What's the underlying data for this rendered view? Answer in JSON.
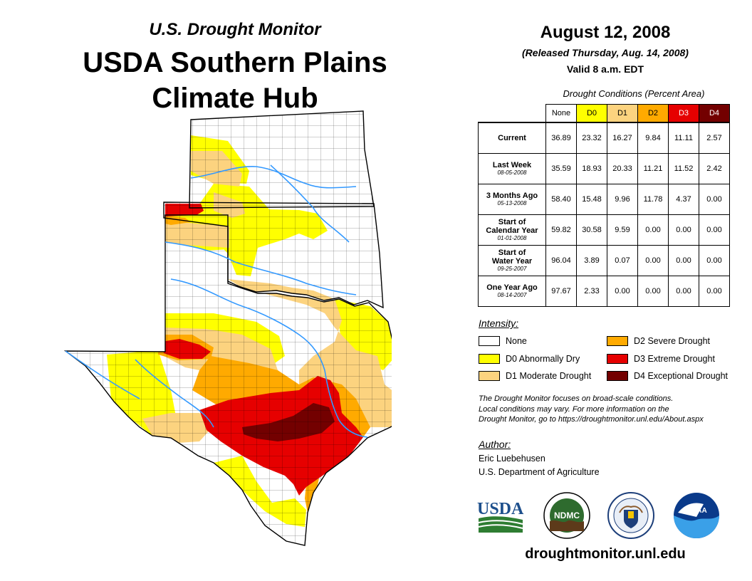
{
  "header": {
    "subtitle": "U.S. Drought Monitor",
    "title_line1": "USDA Southern Plains",
    "title_line2": "Climate Hub"
  },
  "report": {
    "date": "August 12, 2008",
    "released": "(Released Thursday, Aug. 14, 2008)",
    "valid": "Valid 8 a.m. EDT"
  },
  "conditions": {
    "caption": "Drought Conditions (Percent Area)",
    "columns": [
      {
        "label": "None",
        "color": "#ffffff",
        "text_color": "#000000"
      },
      {
        "label": "D0",
        "color": "#ffff00",
        "text_color": "#000000"
      },
      {
        "label": "D1",
        "color": "#fcd37f",
        "text_color": "#000000"
      },
      {
        "label": "D2",
        "color": "#ffaa00",
        "text_color": "#000000"
      },
      {
        "label": "D3",
        "color": "#e60000",
        "text_color": "#ffffff"
      },
      {
        "label": "D4",
        "color": "#730000",
        "text_color": "#ffffff"
      }
    ],
    "rows": [
      {
        "label_line1": "Current",
        "label_line2": "",
        "date": "",
        "values": [
          "36.89",
          "23.32",
          "16.27",
          "9.84",
          "11.11",
          "2.57"
        ]
      },
      {
        "label_line1": "Last Week",
        "label_line2": "",
        "date": "08-05-2008",
        "values": [
          "35.59",
          "18.93",
          "20.33",
          "11.21",
          "11.52",
          "2.42"
        ]
      },
      {
        "label_line1": "3 Months Ago",
        "label_line2": "",
        "date": "05-13-2008",
        "values": [
          "58.40",
          "15.48",
          "9.96",
          "11.78",
          "4.37",
          "0.00"
        ]
      },
      {
        "label_line1": "Start of",
        "label_line2": "Calendar Year",
        "date": "01-01-2008",
        "values": [
          "59.82",
          "30.58",
          "9.59",
          "0.00",
          "0.00",
          "0.00"
        ]
      },
      {
        "label_line1": "Start of",
        "label_line2": "Water Year",
        "date": "09-25-2007",
        "values": [
          "96.04",
          "3.89",
          "0.07",
          "0.00",
          "0.00",
          "0.00"
        ]
      },
      {
        "label_line1": "One Year Ago",
        "label_line2": "",
        "date": "08-14-2007",
        "values": [
          "97.67",
          "2.33",
          "0.00",
          "0.00",
          "0.00",
          "0.00"
        ]
      }
    ]
  },
  "legend": {
    "heading": "Intensity:",
    "items": [
      {
        "label": "None",
        "color": "#ffffff"
      },
      {
        "label": "D0 Abnormally Dry",
        "color": "#ffff00"
      },
      {
        "label": "D1 Moderate Drought",
        "color": "#fcd37f"
      },
      {
        "label": "D2 Severe Drought",
        "color": "#ffaa00"
      },
      {
        "label": "D3 Extreme Drought",
        "color": "#e60000"
      },
      {
        "label": "D4 Exceptional Drought",
        "color": "#730000"
      }
    ]
  },
  "disclaimer": {
    "line1": "The Drought Monitor focuses on broad-scale conditions.",
    "line2": "Local conditions may vary. For more information on the",
    "line3": "Drought Monitor, go to https://droughtmonitor.unl.edu/About.aspx"
  },
  "author": {
    "heading": "Author:",
    "name": "Eric Luebehusen",
    "org": "U.S. Department of Agriculture"
  },
  "logos": {
    "usda": "USDA",
    "ndmc": "NDMC",
    "noaa": "NOAA"
  },
  "website": "droughtmonitor.unl.edu"
}
